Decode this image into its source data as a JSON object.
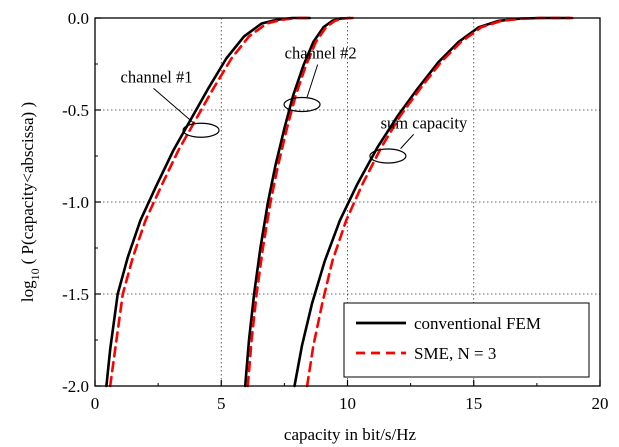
{
  "chart_data": {
    "type": "line",
    "xlabel": "capacity in bit/s/Hz",
    "ylabel": {
      "prefix": "log",
      "subscript": "10",
      "suffix": "( P(capacity<abscissa) )"
    },
    "xlim": [
      0,
      20
    ],
    "ylim": [
      -2.0,
      0.0
    ],
    "xticks": [
      0,
      5,
      10,
      15,
      20
    ],
    "xtick_labels": [
      "0",
      "5",
      "10",
      "15",
      "20"
    ],
    "yticks": [
      0.0,
      -0.5,
      -1.0,
      -1.5,
      -2.0
    ],
    "ytick_labels": [
      "0.0",
      "-0.5",
      "-1.0",
      "-1.5",
      "-2.0"
    ],
    "grid": true,
    "legend_position": "bottom-right",
    "colors": {
      "fem": "#000000",
      "sme": "#ff0000"
    },
    "series": [
      {
        "name": "conventional FEM",
        "group": "channel #1",
        "style": "solid",
        "x": [
          0.45,
          0.6,
          0.9,
          1.3,
          1.8,
          2.4,
          3.1,
          3.8,
          4.5,
          5.2,
          5.9,
          6.6,
          7.2,
          7.8,
          8.5
        ],
        "y": [
          -2.0,
          -1.8,
          -1.5,
          -1.3,
          -1.1,
          -0.92,
          -0.72,
          -0.55,
          -0.38,
          -0.22,
          -0.1,
          -0.03,
          -0.01,
          0.0,
          0.0
        ]
      },
      {
        "name": "SME, N = 3",
        "group": "channel #1",
        "style": "dashed",
        "x": [
          0.6,
          0.8,
          1.1,
          1.5,
          2.0,
          2.6,
          3.3,
          4.0,
          4.7,
          5.4,
          6.1,
          6.8,
          7.4,
          8.0,
          8.6
        ],
        "y": [
          -2.0,
          -1.8,
          -1.5,
          -1.3,
          -1.1,
          -0.92,
          -0.72,
          -0.55,
          -0.38,
          -0.22,
          -0.1,
          -0.03,
          -0.01,
          0.0,
          0.0
        ]
      },
      {
        "name": "conventional FEM",
        "group": "channel #2",
        "style": "solid",
        "x": [
          5.95,
          6.1,
          6.3,
          6.55,
          6.85,
          7.15,
          7.5,
          7.85,
          8.25,
          8.65,
          9.05,
          9.4,
          9.7,
          10.1
        ],
        "y": [
          -2.0,
          -1.75,
          -1.5,
          -1.25,
          -1.0,
          -0.8,
          -0.6,
          -0.42,
          -0.26,
          -0.13,
          -0.05,
          -0.015,
          -0.003,
          0.0
        ]
      },
      {
        "name": "SME, N = 3",
        "group": "channel #2",
        "style": "dashed",
        "x": [
          6.05,
          6.2,
          6.4,
          6.65,
          6.95,
          7.25,
          7.6,
          7.95,
          8.35,
          8.75,
          9.15,
          9.5,
          9.8,
          10.2
        ],
        "y": [
          -2.0,
          -1.75,
          -1.5,
          -1.25,
          -1.0,
          -0.8,
          -0.6,
          -0.42,
          -0.26,
          -0.13,
          -0.05,
          -0.015,
          -0.003,
          0.0
        ]
      },
      {
        "name": "conventional FEM",
        "group": "sum capacity",
        "style": "solid",
        "x": [
          7.9,
          8.2,
          8.6,
          9.1,
          9.7,
          10.4,
          11.2,
          12.0,
          12.8,
          13.6,
          14.4,
          15.2,
          16.0,
          16.8,
          17.6,
          18.8
        ],
        "y": [
          -2.0,
          -1.78,
          -1.55,
          -1.32,
          -1.1,
          -0.9,
          -0.7,
          -0.53,
          -0.38,
          -0.24,
          -0.13,
          -0.05,
          -0.015,
          -0.004,
          0.0,
          0.0
        ]
      },
      {
        "name": "SME, N = 3",
        "group": "sum capacity",
        "style": "dashed",
        "x": [
          8.4,
          8.65,
          9.0,
          9.4,
          9.95,
          10.6,
          11.35,
          12.1,
          12.9,
          13.7,
          14.5,
          15.3,
          16.1,
          16.9,
          17.7,
          18.9
        ],
        "y": [
          -2.0,
          -1.78,
          -1.55,
          -1.32,
          -1.1,
          -0.9,
          -0.7,
          -0.53,
          -0.38,
          -0.24,
          -0.13,
          -0.05,
          -0.015,
          -0.004,
          0.0,
          0.0
        ]
      }
    ],
    "annotations": [
      {
        "text": "channel #1",
        "ellipse": [
          4.2,
          -0.61
        ],
        "text_at": [
          2.2,
          -0.35
        ],
        "leader_to": [
          3.9,
          -0.57
        ]
      },
      {
        "text": "channel #2",
        "ellipse": [
          8.2,
          -0.47
        ],
        "text_at": [
          8.7,
          -0.22
        ],
        "leader_to": [
          8.4,
          -0.43
        ]
      },
      {
        "text": "sum capacity",
        "ellipse": [
          11.6,
          -0.75
        ],
        "text_at": [
          12.5,
          -0.6
        ],
        "leader_to": [
          12.1,
          -0.71
        ]
      }
    ]
  }
}
